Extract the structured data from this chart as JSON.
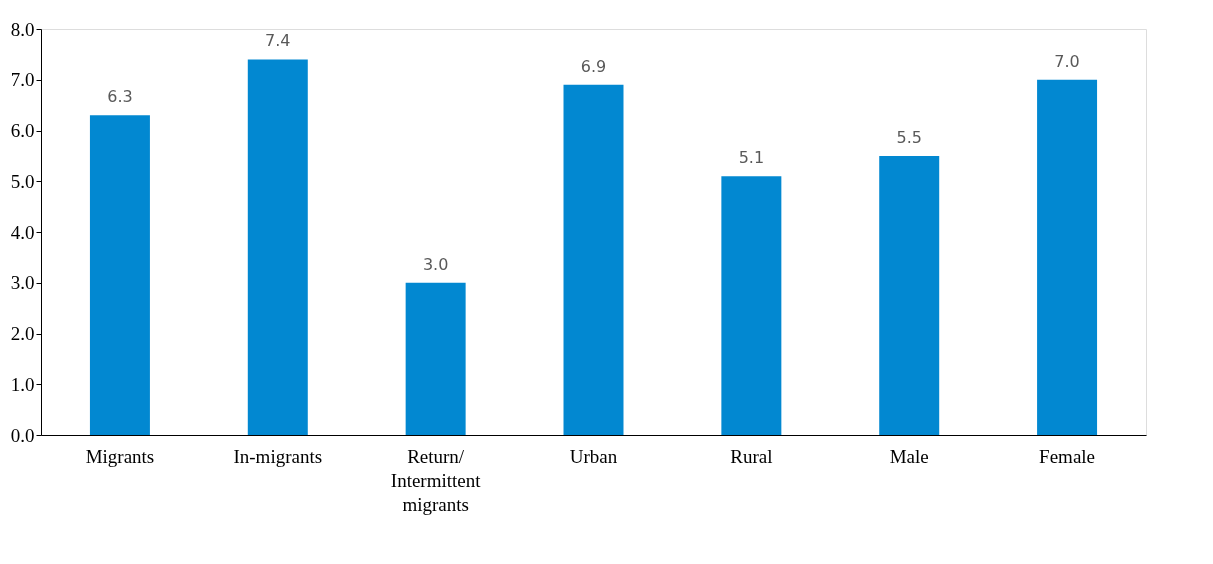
{
  "chart_data": {
    "type": "bar",
    "categories": [
      "Migrants",
      "In-migrants",
      "Return/ Intermittent migrants",
      "Urban",
      "Rural",
      "Male",
      "Female"
    ],
    "values": [
      6.3,
      7.4,
      3.0,
      6.9,
      5.1,
      5.5,
      7.0
    ],
    "value_labels": [
      "6.3",
      "7.4",
      "3.0",
      "6.9",
      "5.1",
      "5.5",
      "7.0"
    ],
    "color": "#0288d1",
    "ylim": [
      0,
      8
    ],
    "yticks": [
      {
        "value": 0,
        "label": "0.0"
      },
      {
        "value": 1,
        "label": "1.0"
      },
      {
        "value": 2,
        "label": "2.0"
      },
      {
        "value": 3,
        "label": "3.0"
      },
      {
        "value": 4,
        "label": "4.0"
      },
      {
        "value": 5,
        "label": "5.0"
      },
      {
        "value": 6,
        "label": "6.0"
      },
      {
        "value": 7,
        "label": "7.0"
      },
      {
        "value": 8,
        "label": "8.0"
      }
    ],
    "grid": false
  }
}
